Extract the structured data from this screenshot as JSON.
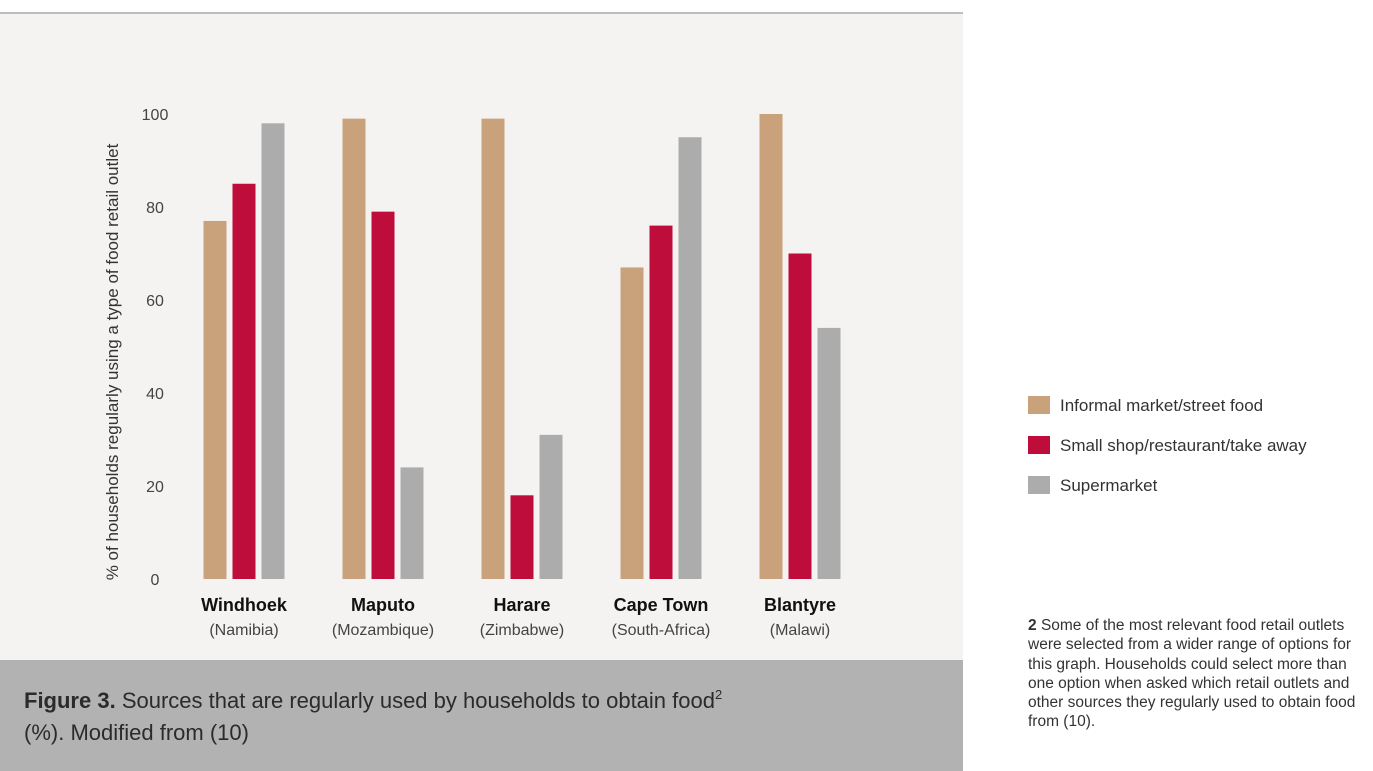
{
  "figure": {
    "label": "Figure 3.",
    "caption_text": "Sources that are regularly used by households to obtain food",
    "caption_sup": "2",
    "caption_tail": "(%). Modified from (10)"
  },
  "footnote": {
    "number": "2",
    "text": "Some of the most relevant food retail outlets were selected from a wider range of options for this graph. Households could select more than one option when asked which retail outlets and other sources they regularly used to obtain food from (10)."
  },
  "colors": {
    "informal": "#c9a27b",
    "small_shop": "#bf0d3b",
    "supermarket": "#acacac",
    "chart_background": "#f4f3f1",
    "caption_background": "#b2b2b2"
  },
  "chart_data": {
    "type": "bar",
    "ylabel": "% of households regularly using a type of food retail outlet",
    "xlabel": "",
    "ylim": [
      0,
      100
    ],
    "yticks": [
      0,
      20,
      40,
      60,
      80,
      100
    ],
    "grid": false,
    "legend_position": "right",
    "categories": [
      {
        "city": "Windhoek",
        "country": "(Namibia)"
      },
      {
        "city": "Maputo",
        "country": "(Mozambique)"
      },
      {
        "city": "Harare",
        "country": "(Zimbabwe)"
      },
      {
        "city": "Cape Town",
        "country": "(South-Africa)"
      },
      {
        "city": "Blantyre",
        "country": "(Malawi)"
      }
    ],
    "series": [
      {
        "name": "Informal market/street food",
        "color": "#c9a27b",
        "values": [
          77,
          99,
          99,
          67,
          100
        ]
      },
      {
        "name": "Small shop/restaurant/take away",
        "color": "#bf0d3b",
        "values": [
          85,
          79,
          18,
          76,
          70
        ]
      },
      {
        "name": "Supermarket",
        "color": "#acacac",
        "values": [
          98,
          24,
          31,
          95,
          54
        ]
      }
    ]
  }
}
